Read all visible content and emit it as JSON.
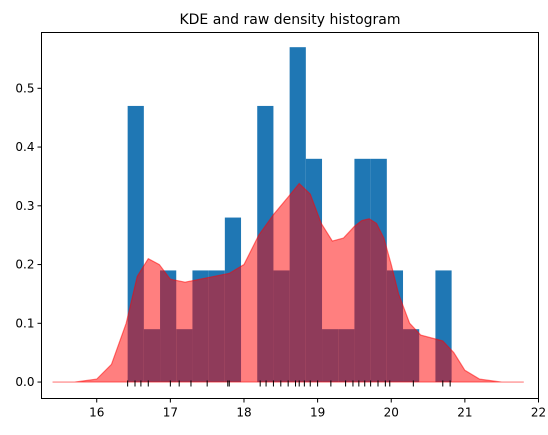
{
  "chart_data": {
    "type": "bar",
    "title": "KDE and raw density histogram",
    "xlabel": "",
    "ylabel": "",
    "xlim": [
      15.25,
      22.0
    ],
    "ylim": [
      -0.028,
      0.595
    ],
    "xticks": [
      16,
      17,
      18,
      19,
      20,
      21,
      22
    ],
    "yticks": [
      0.0,
      0.1,
      0.2,
      0.3,
      0.4,
      0.5
    ],
    "grid": false,
    "legend": "none",
    "histogram": {
      "bin_edges": [
        16.42,
        16.64,
        16.86,
        17.08,
        17.3,
        17.52,
        17.74,
        17.96,
        18.18,
        18.4,
        18.62,
        18.84,
        19.06,
        19.28,
        19.5,
        19.72,
        19.94,
        20.16,
        20.38,
        20.6,
        20.82
      ],
      "values": [
        0.47,
        0.09,
        0.19,
        0.09,
        0.19,
        0.19,
        0.28,
        0.0,
        0.47,
        0.19,
        0.57,
        0.38,
        0.09,
        0.09,
        0.38,
        0.38,
        0.19,
        0.09,
        0.0,
        0.19
      ],
      "color": "#1f77b4"
    },
    "kde": {
      "x": [
        15.4,
        15.7,
        16.0,
        16.2,
        16.4,
        16.55,
        16.7,
        16.85,
        17.0,
        17.2,
        17.4,
        17.6,
        17.8,
        18.0,
        18.2,
        18.4,
        18.6,
        18.75,
        18.9,
        19.05,
        19.2,
        19.35,
        19.5,
        19.6,
        19.7,
        19.8,
        19.9,
        20.0,
        20.1,
        20.25,
        20.4,
        20.55,
        20.7,
        20.85,
        21.0,
        21.2,
        21.5,
        21.8
      ],
      "y": [
        0.0,
        0.0,
        0.005,
        0.03,
        0.1,
        0.18,
        0.21,
        0.2,
        0.175,
        0.17,
        0.175,
        0.18,
        0.185,
        0.2,
        0.25,
        0.285,
        0.315,
        0.338,
        0.32,
        0.27,
        0.24,
        0.245,
        0.265,
        0.275,
        0.278,
        0.27,
        0.245,
        0.2,
        0.15,
        0.1,
        0.08,
        0.075,
        0.07,
        0.05,
        0.02,
        0.005,
        0.0,
        0.0
      ],
      "color": "#ff0000",
      "alpha": 0.5
    },
    "rug": [
      16.42,
      16.52,
      16.6,
      16.7,
      17.0,
      17.12,
      17.28,
      17.5,
      17.78,
      17.8,
      18.22,
      18.3,
      18.4,
      18.5,
      18.6,
      18.7,
      18.75,
      18.82,
      18.9,
      19.0,
      19.18,
      19.38,
      19.48,
      19.56,
      19.64,
      19.72,
      19.82,
      19.92,
      19.98,
      20.3,
      20.7,
      20.8
    ]
  }
}
